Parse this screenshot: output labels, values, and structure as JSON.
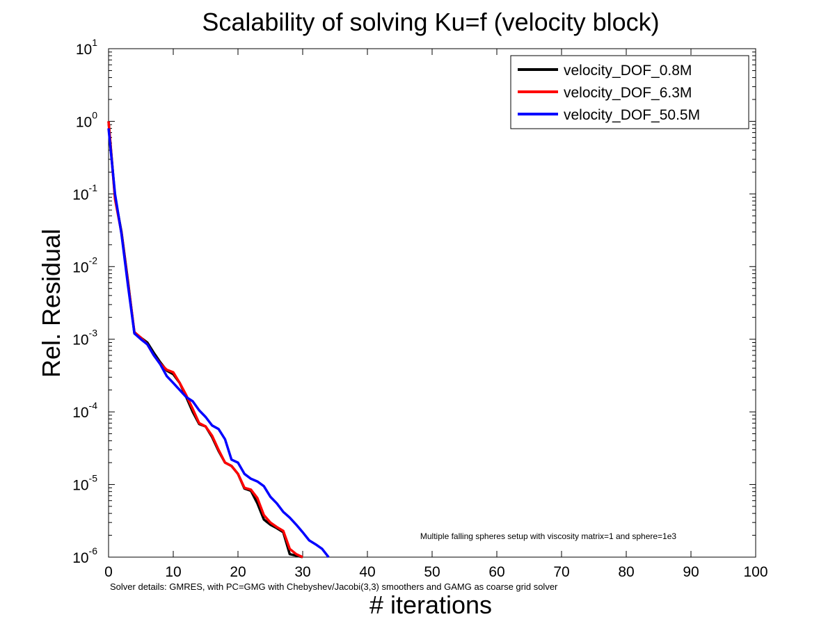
{
  "chart_data": {
    "type": "line",
    "title": "Scalability of solving Ku=f (velocity block)",
    "xlabel": "# iterations",
    "ylabel": "Rel. Residual",
    "xlim": [
      0,
      100
    ],
    "ylim": [
      1e-06,
      10
    ],
    "yscale": "log",
    "xticks": [
      0,
      10,
      20,
      30,
      40,
      50,
      60,
      70,
      80,
      90,
      100
    ],
    "yticks": [
      {
        "value": 10,
        "base": "10",
        "exp": "1"
      },
      {
        "value": 1,
        "base": "10",
        "exp": "0"
      },
      {
        "value": 0.1,
        "base": "10",
        "exp": "-1"
      },
      {
        "value": 0.01,
        "base": "10",
        "exp": "-2"
      },
      {
        "value": 0.001,
        "base": "10",
        "exp": "-3"
      },
      {
        "value": 0.0001,
        "base": "10",
        "exp": "-4"
      },
      {
        "value": 1e-05,
        "base": "10",
        "exp": "-5"
      },
      {
        "value": 1e-06,
        "base": "10",
        "exp": "-6"
      }
    ],
    "grid": false,
    "legend_position": "top-right",
    "annotation": "Multiple falling spheres setup with viscosity matrix=1 and sphere=1e3",
    "footnote": "Solver details: GMRES, with PC=GMG with Chebyshev/Jacobi(3,3) smoothers and GAMG as coarse grid solver",
    "series": [
      {
        "name": "velocity_DOF_0.8M",
        "color": "#000000",
        "x": [
          0,
          1,
          2,
          3,
          4,
          5,
          6,
          7,
          8,
          9,
          10,
          11,
          12,
          13,
          14,
          15,
          16,
          17,
          18,
          19,
          20,
          21,
          22,
          23,
          24,
          25,
          26,
          27,
          28,
          29,
          30
        ],
        "y": [
          1.0,
          0.09,
          0.03,
          0.0063,
          0.0012,
          0.00105,
          0.0009,
          0.00065,
          0.00048,
          0.00037,
          0.00033,
          0.00025,
          0.00016,
          0.0001,
          6.8e-05,
          6.3e-05,
          4.5e-05,
          2.9e-05,
          2e-05,
          1.8e-05,
          1.4e-05,
          8.8e-06,
          8.2e-06,
          5.5e-06,
          3.3e-06,
          2.8e-06,
          2.5e-06,
          2.2e-06,
          1.1e-06,
          1.05e-06,
          9.8e-07
        ]
      },
      {
        "name": "velocity_DOF_6.3M",
        "color": "#ff0000",
        "x": [
          0,
          1,
          2,
          3,
          4,
          5,
          6,
          7,
          8,
          9,
          10,
          11,
          12,
          13,
          14,
          15,
          16,
          17,
          18,
          19,
          20,
          21,
          22,
          23,
          24,
          25,
          26,
          27,
          28,
          29,
          30
        ],
        "y": [
          1.0,
          0.085,
          0.029,
          0.006,
          0.00125,
          0.00105,
          0.00085,
          0.0006,
          0.00046,
          0.00038,
          0.00035,
          0.00025,
          0.00017,
          0.00011,
          7e-05,
          6.3e-05,
          4.7e-05,
          3e-05,
          2e-05,
          1.8e-05,
          1.4e-05,
          9e-06,
          8.5e-06,
          6.5e-06,
          3.8e-06,
          3e-06,
          2.6e-06,
          2.3e-06,
          1.3e-06,
          1.1e-06,
          9.8e-07
        ]
      },
      {
        "name": "velocity_DOF_50.5M",
        "color": "#0000ff",
        "x": [
          0,
          1,
          2,
          3,
          4,
          5,
          6,
          7,
          8,
          9,
          10,
          11,
          12,
          13,
          14,
          15,
          16,
          17,
          18,
          19,
          20,
          21,
          22,
          23,
          24,
          25,
          26,
          27,
          28,
          29,
          30,
          31,
          32,
          33,
          34
        ],
        "y": [
          0.8,
          0.1,
          0.028,
          0.0055,
          0.0012,
          0.001,
          0.00085,
          0.0006,
          0.00045,
          0.00031,
          0.00025,
          0.0002,
          0.00016,
          0.00014,
          0.000105,
          8.5e-05,
          6.5e-05,
          5.8e-05,
          4.2e-05,
          2.2e-05,
          2e-05,
          1.4e-05,
          1.2e-05,
          1.1e-05,
          9.5e-06,
          6.8e-06,
          5.5e-06,
          4.2e-06,
          3.5e-06,
          2.8e-06,
          2.2e-06,
          1.7e-06,
          1.5e-06,
          1.3e-06,
          9.8e-07
        ]
      }
    ]
  }
}
